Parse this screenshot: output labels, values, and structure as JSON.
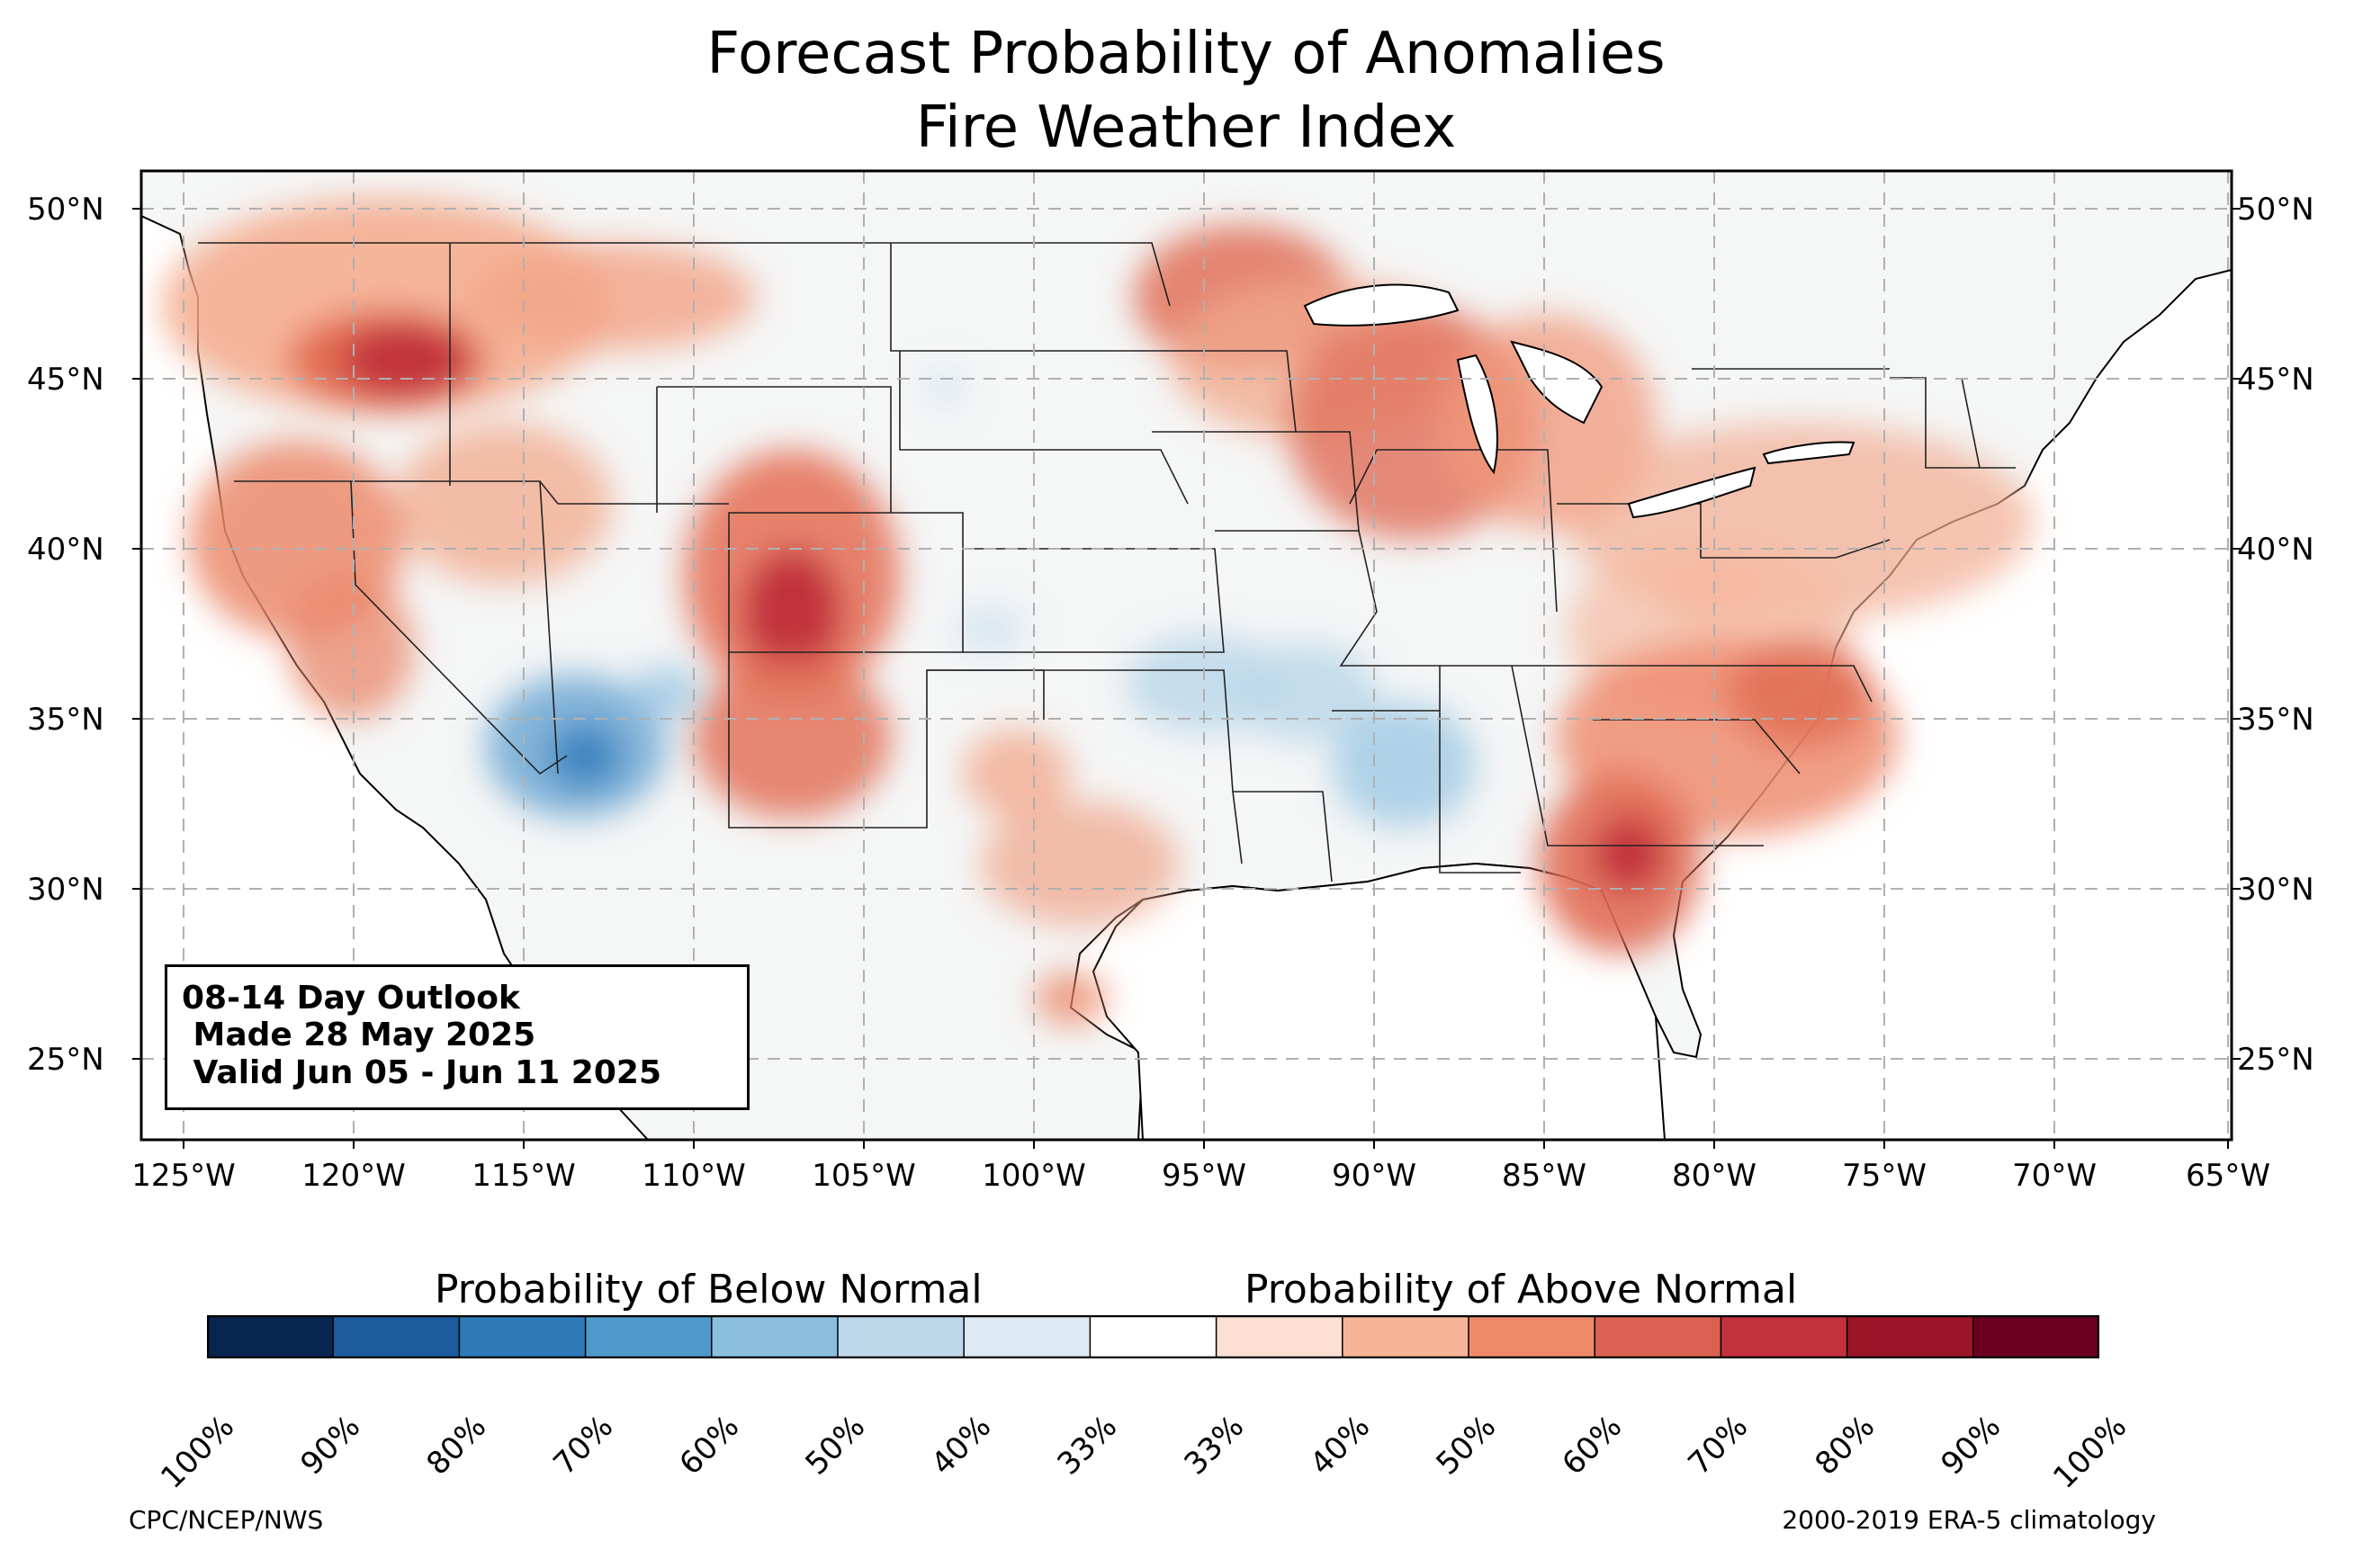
{
  "title": {
    "line1": "Forecast Probability of Anomalies",
    "line2": "Fire Weather Index"
  },
  "latitude_labels": [
    "50°N",
    "45°N",
    "40°N",
    "35°N",
    "30°N",
    "25°N"
  ],
  "longitude_labels": [
    "125°W",
    "120°W",
    "115°W",
    "110°W",
    "105°W",
    "100°W",
    "95°W",
    "90°W",
    "85°W",
    "80°W",
    "75°W",
    "70°W",
    "65°W"
  ],
  "outlook": {
    "line1": "08-14 Day Outlook",
    "line2": " Made 28 May 2025",
    "line3": " Valid Jun 05 - Jun 11 2025"
  },
  "colorbar": {
    "below_label": "Probability of Below Normal",
    "above_label": "Probability of Above Normal",
    "tick_labels": [
      "100%",
      "90%",
      "80%",
      "70%",
      "60%",
      "50%",
      "40%",
      "33%",
      "33%",
      "40%",
      "50%",
      "60%",
      "70%",
      "80%",
      "90%",
      "100%"
    ],
    "colors": [
      "#08254f",
      "#1b5c9e",
      "#2e7ab8",
      "#4f9acb",
      "#8ac0dd",
      "#bcd8ea",
      "#dde9f3",
      "#ffffff",
      "#fde0d2",
      "#f7b597",
      "#ee8a6a",
      "#da6150",
      "#c2313d",
      "#9c1529",
      "#6a0020"
    ]
  },
  "footer": {
    "source": "CPC/NCEP/NWS",
    "climatology": "2000-2019 ERA-5 climatology"
  }
}
